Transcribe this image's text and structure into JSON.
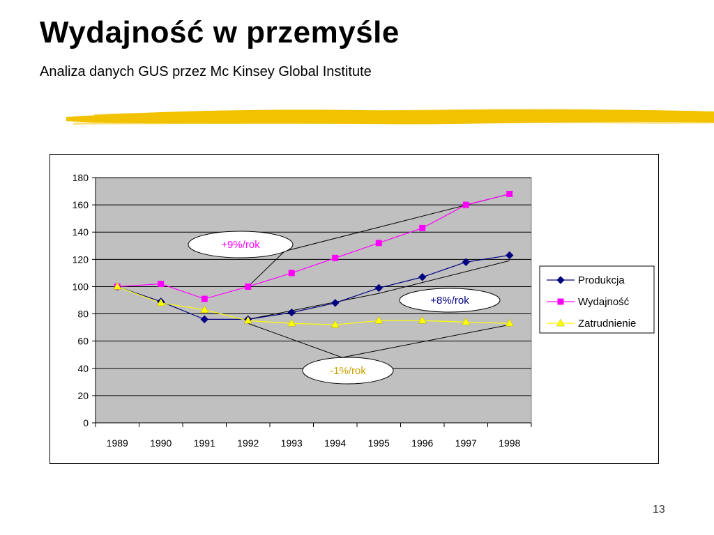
{
  "slide": {
    "title": "Wydajność w przemyśle",
    "subtitle": "Analiza danych GUS przez Mc Kinsey Global Institute",
    "page_number": "13",
    "accent_brush_color": "#f2c200"
  },
  "chart_data": {
    "type": "line",
    "title": "",
    "xlabel": "",
    "ylabel": "",
    "categories": [
      "1989",
      "1990",
      "1991",
      "1992",
      "1993",
      "1994",
      "1995",
      "1996",
      "1997",
      "1998"
    ],
    "ylim": [
      0,
      180
    ],
    "yticks": [
      0,
      20,
      40,
      60,
      80,
      100,
      120,
      140,
      160,
      180
    ],
    "grid": true,
    "plot_background": "#c0c0c0",
    "legend_position": "right",
    "series": [
      {
        "name": "Produkcja",
        "color": "#000080",
        "marker": "diamond",
        "values": [
          100,
          89,
          76,
          76,
          81,
          88,
          99,
          107,
          118,
          123
        ]
      },
      {
        "name": "Wydajność",
        "color": "#ff00ff",
        "marker": "square",
        "values": [
          100,
          102,
          91,
          100,
          110,
          121,
          132,
          143,
          160,
          168
        ]
      },
      {
        "name": "Zatrudnienie",
        "color": "#ffff00",
        "marker": "triangle",
        "values": [
          100,
          88,
          83,
          75,
          73,
          72,
          75,
          75,
          74,
          73
        ]
      }
    ],
    "annotations": [
      {
        "label": "+9%/rok",
        "color": "#ff00ff"
      },
      {
        "label": "+8%/rok",
        "color": "#000080"
      },
      {
        "label": "-1%/rok",
        "color": "#c8a000"
      }
    ]
  }
}
